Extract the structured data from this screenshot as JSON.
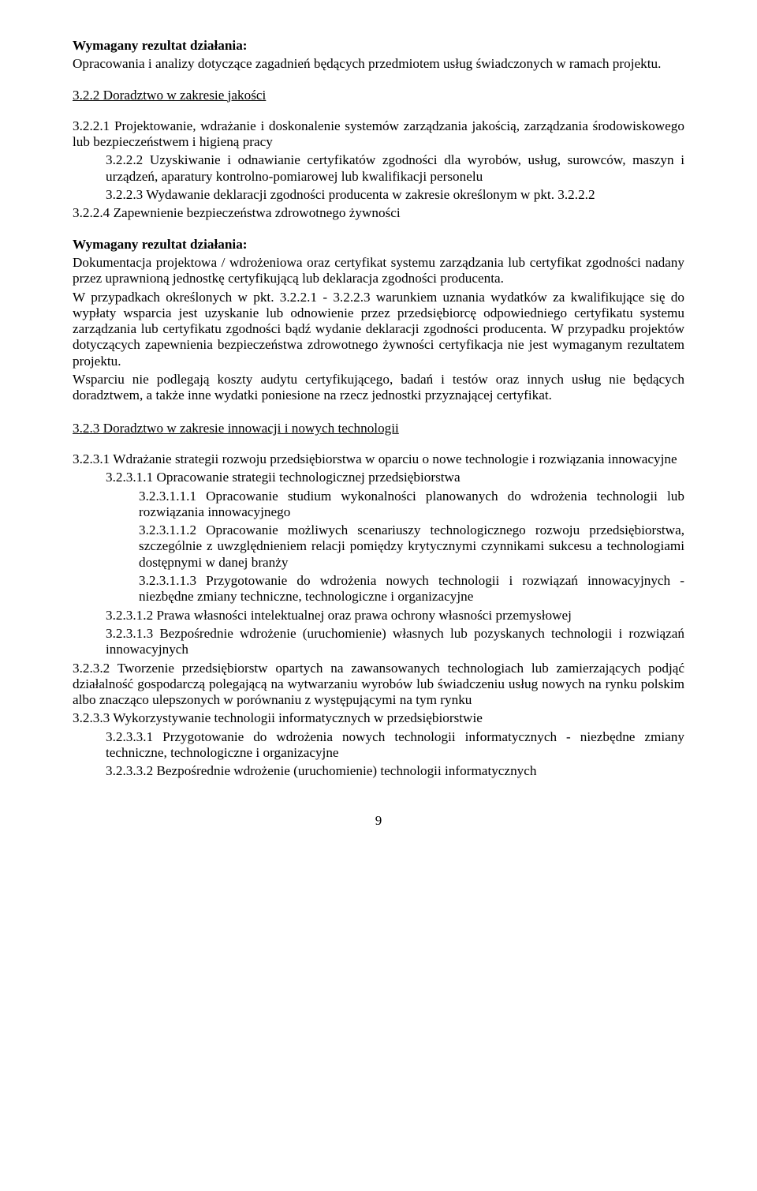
{
  "sec_a": {
    "h1": "Wymagany rezultat działania:",
    "p1": "Opracowania i analizy dotyczące zagadnień będących przedmiotem usług świadczonych w ramach projektu."
  },
  "sec_b": {
    "title": "3.2.2 Doradztwo w zakresie jakości",
    "i1": "3.2.2.1 Projektowanie, wdrażanie i doskonalenie systemów zarządzania jakością, zarządzania środowiskowego lub bezpieczeństwem i higieną pracy",
    "i2": "3.2.2.2 Uzyskiwanie i odnawianie certyfikatów zgodności dla wyrobów, usług, surowców, maszyn i urządzeń, aparatury kontrolno-pomiarowej lub kwalifikacji personelu",
    "i3": "3.2.2.3 Wydawanie deklaracji zgodności producenta w zakresie określonym w pkt. 3.2.2.2",
    "i4": "3.2.2.4 Zapewnienie bezpieczeństwa zdrowotnego żywności",
    "rez_h": "Wymagany rezultat działania:",
    "rez_p1": "Dokumentacja projektowa / wdrożeniowa oraz certyfikat systemu zarządzania lub certyfikat zgodności nadany przez uprawnioną jednostkę certyfikującą lub deklaracja zgodności producenta.",
    "rez_p2": "W przypadkach określonych w pkt. 3.2.2.1 - 3.2.2.3 warunkiem uznania wydatków za kwalifikujące się do wypłaty wsparcia jest uzyskanie lub odnowienie przez przedsiębiorcę odpowiedniego certyfikatu systemu zarządzania lub certyfikatu zgodności bądź wydanie deklaracji zgodności producenta. W przypadku projektów dotyczących zapewnienia bezpieczeństwa zdrowotnego żywności certyfikacja nie jest wymaganym rezultatem projektu.",
    "rez_p3": "Wsparciu nie podlegają koszty audytu certyfikującego, badań i testów oraz innych usług nie będących doradztwem, a także inne wydatki poniesione na rzecz jednostki przyznającej certyfikat."
  },
  "sec_c": {
    "title": "3.2.3 Doradztwo w zakresie innowacji i nowych technologii",
    "l1": "3.2.3.1 Wdrażanie strategii rozwoju przedsiębiorstwa w oparciu o nowe technologie i rozwiązania innowacyjne",
    "l1_1": "3.2.3.1.1 Opracowanie strategii technologicznej przedsiębiorstwa",
    "l1_1_1": "3.2.3.1.1.1 Opracowanie studium wykonalności planowanych do wdrożenia technologii lub rozwiązania innowacyjnego",
    "l1_1_2": "3.2.3.1.1.2 Opracowanie możliwych scenariuszy technologicznego rozwoju przedsiębiorstwa, szczególnie z uwzględnieniem relacji pomiędzy krytycznymi czynnikami sukcesu a technologiami dostępnymi w danej branży",
    "l1_1_3": "3.2.3.1.1.3 Przygotowanie do wdrożenia nowych technologii i rozwiązań innowacyjnych - niezbędne zmiany techniczne, technologiczne i organizacyjne",
    "l1_2": "3.2.3.1.2 Prawa własności intelektualnej oraz prawa ochrony własności przemysłowej",
    "l1_3": "3.2.3.1.3 Bezpośrednie wdrożenie (uruchomienie) własnych lub pozyskanych technologii i rozwiązań innowacyjnych",
    "l2": "3.2.3.2 Tworzenie przedsiębiorstw opartych na zawansowanych technologiach lub zamierzających podjąć działalność gospodarczą polegającą na wytwarzaniu wyrobów lub świadczeniu usług nowych na rynku polskim albo znacząco ulepszonych w porównaniu z występującymi na tym rynku",
    "l3": "3.2.3.3 Wykorzystywanie technologii informatycznych w przedsiębiorstwie",
    "l3_1": "3.2.3.3.1 Przygotowanie do wdrożenia nowych technologii informatycznych - niezbędne zmiany techniczne, technologiczne i organizacyjne",
    "l3_2": "3.2.3.3.2 Bezpośrednie wdrożenie (uruchomienie) technologii informatycznych"
  },
  "pagenum": "9"
}
